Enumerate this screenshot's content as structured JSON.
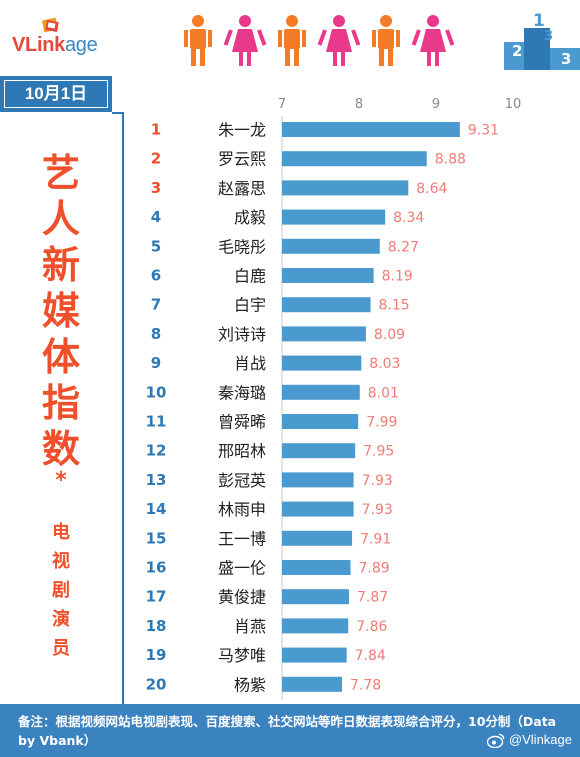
{
  "brand": {
    "logo_head": "VLink",
    "logo_tail": "age"
  },
  "date_tab": "10月1日",
  "title_chars": [
    "艺",
    "人",
    "新",
    "媒",
    "体",
    "指",
    "数",
    "*"
  ],
  "subtitle_chars": [
    "电",
    "视",
    "剧",
    "演",
    "员"
  ],
  "footer": {
    "note": "备注：根据视频网站电视剧表现、百度搜索、社交网站等昨日数据表现综合评分，10分制（Data by Vbank）",
    "weibo": "@Vlinkage"
  },
  "colors": {
    "bar": "#4a9acf",
    "rank_top3": "#ef4f2a",
    "rank_other": "#2e79b5",
    "value": "#f07c76",
    "accent_blue": "#2e79b5",
    "title_red": "#ef4f2a",
    "person_orange": "#f47c26",
    "person_pink": "#e8398b"
  },
  "header_icons": [
    "male-person-icon",
    "female-person-icon",
    "male-person-icon",
    "female-person-icon",
    "male-person-icon",
    "female-person-icon"
  ],
  "chart_data": {
    "type": "bar",
    "orientation": "horizontal",
    "xlim": [
      7,
      10
    ],
    "x_ticks": [
      "7",
      "8",
      "9",
      "10"
    ],
    "categories": [
      "朱一龙",
      "罗云熙",
      "赵露思",
      "成毅",
      "毛晓彤",
      "白鹿",
      "白宇",
      "刘诗诗",
      "肖战",
      "秦海璐",
      "曾舜晞",
      "邢昭林",
      "彭冠英",
      "林雨申",
      "王一博",
      "盛一伦",
      "黄俊捷",
      "肖燕",
      "马梦唯",
      "杨紫"
    ],
    "ranks": [
      "1",
      "2",
      "3",
      "4",
      "5",
      "6",
      "7",
      "8",
      "9",
      "10",
      "11",
      "12",
      "13",
      "14",
      "15",
      "16",
      "17",
      "18",
      "19",
      "20"
    ],
    "values": [
      9.31,
      8.88,
      8.64,
      8.34,
      8.27,
      8.19,
      8.15,
      8.09,
      8.03,
      8.01,
      7.99,
      7.95,
      7.93,
      7.93,
      7.91,
      7.89,
      7.87,
      7.86,
      7.84,
      7.78
    ],
    "value_labels": [
      "9.31",
      "8.88",
      "8.64",
      "8.34",
      "8.27",
      "8.19",
      "8.15",
      "8.09",
      "8.03",
      "8.01",
      "7.99",
      "7.95",
      "7.93",
      "7.93",
      "7.91",
      "7.89",
      "7.87",
      "7.86",
      "7.84",
      "7.78"
    ],
    "grid": false,
    "legend": "none"
  }
}
